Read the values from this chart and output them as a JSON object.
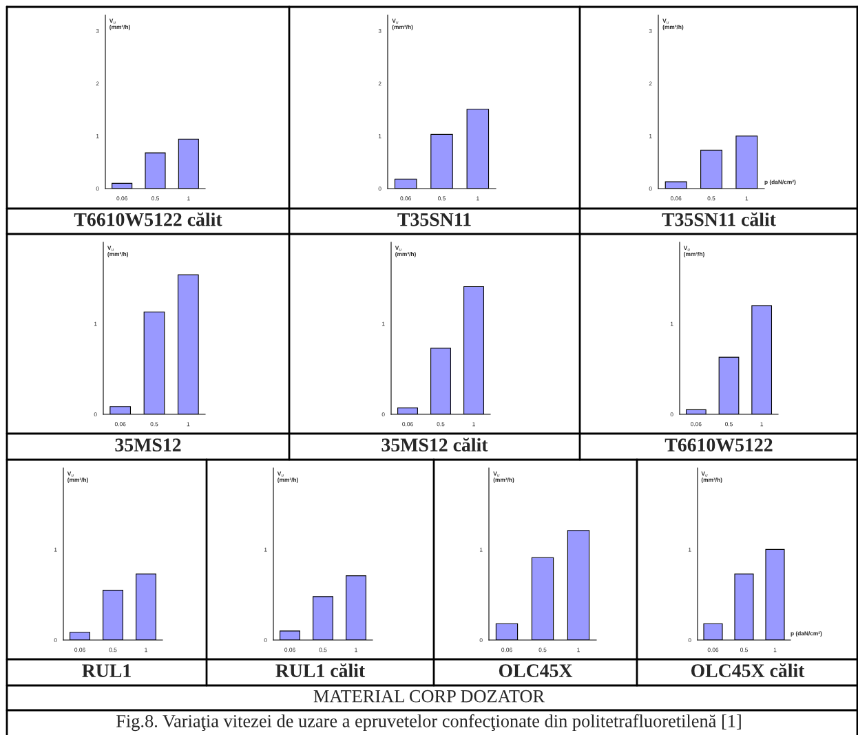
{
  "chart_data": [
    {
      "type": "bar",
      "title": "T6610W5122 călit",
      "ylabel": "V$_{u}$\n(mm³/h)",
      "categories": [
        "0.06",
        "0.5",
        "1"
      ],
      "values": [
        0.1,
        0.68,
        0.94
      ],
      "color": "#9999ff",
      "ylim": [
        0,
        3.3
      ],
      "yticks": [
        0,
        1,
        2,
        3
      ]
    },
    {
      "type": "bar",
      "title": "T35SN11",
      "ylabel": "V$_{u}$\n(mm³/h)",
      "categories": [
        "0.06",
        "0.5",
        "1"
      ],
      "values": [
        0.18,
        1.03,
        1.51
      ],
      "color": "#9999ff",
      "ylim": [
        0,
        3.3
      ],
      "yticks": [
        0,
        1,
        2,
        3
      ]
    },
    {
      "type": "bar",
      "title": "T35SN11 călit",
      "ylabel": "V$_{u}$\n(mm³/h)",
      "xlabel": "p (daN/cm²)",
      "categories": [
        "0.06",
        "0.5",
        "1"
      ],
      "values": [
        0.13,
        0.73,
        1.0
      ],
      "color": "#9999ff",
      "ylim": [
        0,
        3.3
      ],
      "yticks": [
        0,
        1,
        2,
        3
      ]
    },
    {
      "type": "bar",
      "title": "35MS12",
      "ylabel": "V$_{u}$\n(mm³/h)",
      "categories": [
        "0.06",
        "0.5",
        "1"
      ],
      "values": [
        0.085,
        1.13,
        1.54
      ],
      "color": "#9999ff",
      "ylim": [
        0,
        1.9
      ],
      "yticks": [
        0,
        1
      ]
    },
    {
      "type": "bar",
      "title": "35MS12 călit",
      "ylabel": "V$_{u}$\n(mm³/h)",
      "categories": [
        "0.06",
        "0.5",
        "1"
      ],
      "values": [
        0.07,
        0.73,
        1.41
      ],
      "color": "#9999ff",
      "ylim": [
        0,
        1.9
      ],
      "yticks": [
        0,
        1
      ]
    },
    {
      "type": "bar",
      "title": "T6610W5122",
      "ylabel": "V$_{u}$\n(mm³/h)",
      "categories": [
        "0.06",
        "0.5",
        "1"
      ],
      "values": [
        0.05,
        0.63,
        1.2
      ],
      "color": "#9999ff",
      "ylim": [
        0,
        1.9
      ],
      "yticks": [
        0,
        1
      ]
    },
    {
      "type": "bar",
      "title": "RUL1",
      "ylabel": "V$_{u}$\n(mm³/h)",
      "categories": [
        "0.06",
        "0.5",
        "1"
      ],
      "values": [
        0.085,
        0.55,
        0.73
      ],
      "color": "#9999ff",
      "ylim": [
        0,
        1.9
      ],
      "yticks": [
        0,
        1
      ]
    },
    {
      "type": "bar",
      "title": "RUL1 călit",
      "ylabel": "V$_{u}$\n(mm³/h)",
      "categories": [
        "0.06",
        "0.5",
        "1"
      ],
      "values": [
        0.1,
        0.48,
        0.71
      ],
      "color": "#9999ff",
      "ylim": [
        0,
        1.9
      ],
      "yticks": [
        0,
        1
      ]
    },
    {
      "type": "bar",
      "title": "OLC45X",
      "ylabel": "V$_{u}$\n(mm³/h)",
      "categories": [
        "0.06",
        "0.5",
        "1"
      ],
      "values": [
        0.18,
        0.91,
        1.21
      ],
      "color": "#9999ff",
      "ylim": [
        0,
        1.9
      ],
      "yticks": [
        0,
        1
      ]
    },
    {
      "type": "bar",
      "title": "OLC45X călit",
      "ylabel": "V$_{u}$\n(mm³/h)",
      "xlabel": "p (daN/cm²)",
      "categories": [
        "0.06",
        "0.5",
        "1"
      ],
      "values": [
        0.18,
        0.73,
        1.0
      ],
      "color": "#9999ff",
      "ylim": [
        0,
        1.9
      ],
      "yticks": [
        0,
        1
      ],
      "annotations": [
        "MATERIAL CORP DOZATOR",
        "Fig.8. Variaţia vitezei de uzare a epruvetelor confecţionate din politetrafluoretilenă [1]"
      ]
    }
  ]
}
